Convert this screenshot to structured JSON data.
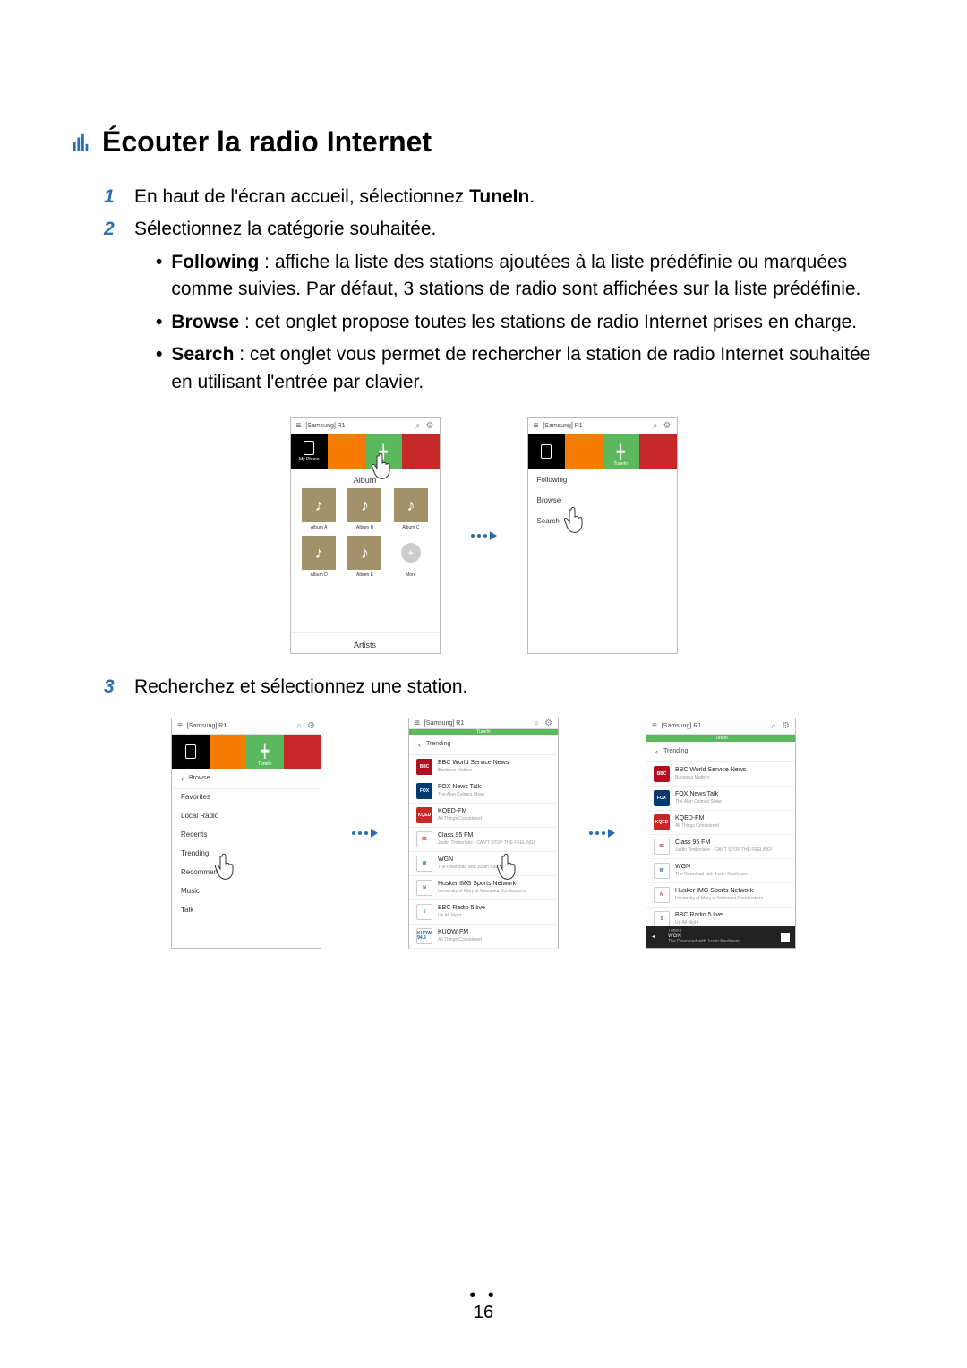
{
  "heading": "Écouter la radio Internet",
  "step1": {
    "num": "1",
    "pre": "En haut de l'écran accueil, sélectionnez ",
    "bold": "TuneIn",
    "post": "."
  },
  "step2": {
    "num": "2",
    "text": "Sélectionnez la catégorie souhaitée.",
    "bullet_following_label": "Following",
    "bullet_following_rest": " : affiche la liste des stations ajoutées à la liste prédéfinie ou marquées comme suivies. Par défaut, 3 stations de radio sont affichées sur la liste prédéfinie.",
    "bullet_browse_label": "Browse",
    "bullet_browse_rest": " : cet onglet propose toutes les stations de radio Internet prises en charge.",
    "bullet_search_label": "Search",
    "bullet_search_rest": " : cet onglet vous permet de rechercher la station de radio Internet souhaitée en utilisant l'entrée par clavier."
  },
  "step3": {
    "num": "3",
    "text": "Recherchez et sélectionnez une station."
  },
  "device_name": "[Samsung] R1",
  "myphone_label": "My Phone",
  "tunein_label": "TuneIn",
  "album_section": "Album",
  "artists_section": "Artists",
  "albums": [
    "Album A",
    "Album B",
    "Album C",
    "Album D",
    "Album E"
  ],
  "more_label": "More",
  "menu": {
    "following": "Following",
    "browse": "Browse",
    "search": "Search"
  },
  "browse_back": "Browse",
  "browse_items": [
    "Favorites",
    "Local Radio",
    "Recents",
    "Trending",
    "Recommend",
    "Music",
    "Talk"
  ],
  "trending_back": "Trending",
  "stations": [
    {
      "title": "BBC World Service News",
      "sub": "Business Matters",
      "bg": "#b10e1e",
      "txt": "BBC"
    },
    {
      "title": "FOX News Talk",
      "sub": "The Alan Colmes Show",
      "bg": "#003a70",
      "txt": "FOX"
    },
    {
      "title": "KQED-FM",
      "sub": "All Things Considered",
      "bg": "#c62828",
      "txt": "KQED"
    },
    {
      "title": "Class 95 FM",
      "sub": "Justin Timberlake - CAN'T STOP THE FEELING!",
      "bg": "#ffffff",
      "txt": "95",
      "fg": "#c62828"
    },
    {
      "title": "WGN",
      "sub": "The Download with Justin Kaufmann",
      "bg": "#ffffff",
      "txt": "W",
      "fg": "#1e5aa8"
    },
    {
      "title": "Husker IMG Sports Network",
      "sub": "University of Mary at Nebraska Cornhuskers",
      "bg": "#ffffff",
      "txt": "N",
      "fg": "#c62828"
    },
    {
      "title": "BBC Radio 5 live",
      "sub": "Up All Night",
      "bg": "#ffffff",
      "txt": "5",
      "fg": "#1e88e5"
    },
    {
      "title": "KUOW-FM",
      "sub": "All Things Considered",
      "bg": "#ffffff",
      "txt": "94.9",
      "fg": "#1e5aa8"
    }
  ],
  "nowplaying": {
    "source": "TuneIn",
    "station": "WGN",
    "track": "The Download with Justin Kaufmann"
  },
  "page_number": "16",
  "colors": {
    "accent_blue": "#2a6db0",
    "orange": "#f57c00",
    "green": "#5cb85c",
    "red": "#c62828",
    "olive": "#a39169"
  }
}
